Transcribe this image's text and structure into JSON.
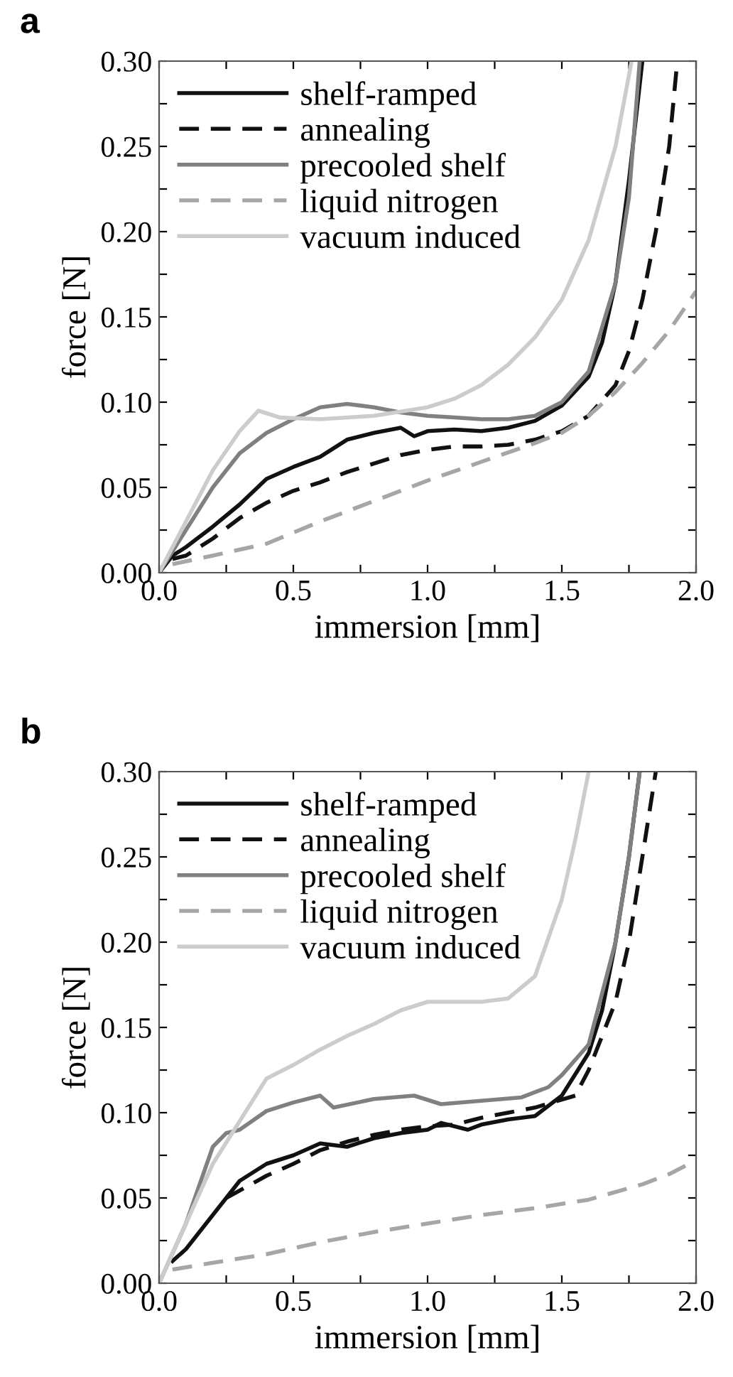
{
  "chart_data": [
    {
      "type": "line",
      "title": "a",
      "xlabel": "immersion [mm]",
      "ylabel": "force [N]",
      "xlim": [
        0,
        2
      ],
      "ylim": [
        0,
        0.3
      ],
      "xticks": [
        {
          "value": 0,
          "label": "0.0"
        },
        {
          "value": 0.25,
          "label": null
        },
        {
          "value": 0.5,
          "label": "0.5"
        },
        {
          "value": 0.75,
          "label": null
        },
        {
          "value": 1,
          "label": "1.0"
        },
        {
          "value": 1.25,
          "label": null
        },
        {
          "value": 1.5,
          "label": "1.5"
        },
        {
          "value": 1.75,
          "label": null
        },
        {
          "value": 2,
          "label": "2.0"
        }
      ],
      "yticks": [
        {
          "value": 0,
          "label": "0.00"
        },
        {
          "value": 0.025,
          "label": null
        },
        {
          "value": 0.05,
          "label": "0.05"
        },
        {
          "value": 0.075,
          "label": null
        },
        {
          "value": 0.1,
          "label": "0.10"
        },
        {
          "value": 0.125,
          "label": null
        },
        {
          "value": 0.15,
          "label": "0.15"
        },
        {
          "value": 0.175,
          "label": null
        },
        {
          "value": 0.2,
          "label": "0.20"
        },
        {
          "value": 0.225,
          "label": null
        },
        {
          "value": 0.25,
          "label": "0.25"
        },
        {
          "value": 0.275,
          "label": null
        },
        {
          "value": 0.3,
          "label": "0.30"
        }
      ],
      "grid": false,
      "legend": "top left",
      "marker": "none",
      "series": [
        {
          "name": "shelf-ramped",
          "color": "#111111",
          "line_style": "solid",
          "x": [
            0,
            0.05,
            0.1,
            0.2,
            0.3,
            0.4,
            0.5,
            0.6,
            0.7,
            0.8,
            0.9,
            0.95,
            1.0,
            1.1,
            1.2,
            1.3,
            1.4,
            1.5,
            1.6,
            1.65,
            1.7,
            1.75,
            1.8
          ],
          "values": [
            0,
            0.01,
            0.015,
            0.027,
            0.04,
            0.055,
            0.062,
            0.068,
            0.078,
            0.082,
            0.085,
            0.08,
            0.083,
            0.084,
            0.083,
            0.085,
            0.089,
            0.098,
            0.115,
            0.135,
            0.17,
            0.23,
            0.3
          ]
        },
        {
          "name": "annealing",
          "color": "#111111",
          "line_style": "dashed",
          "x": [
            0.05,
            0.1,
            0.2,
            0.3,
            0.4,
            0.5,
            0.6,
            0.7,
            0.8,
            0.9,
            1.0,
            1.1,
            1.2,
            1.3,
            1.4,
            1.5,
            1.6,
            1.7,
            1.75,
            1.8,
            1.85,
            1.9,
            1.93
          ],
          "values": [
            0.008,
            0.01,
            0.02,
            0.032,
            0.041,
            0.048,
            0.053,
            0.059,
            0.064,
            0.069,
            0.072,
            0.074,
            0.074,
            0.075,
            0.078,
            0.083,
            0.092,
            0.11,
            0.13,
            0.16,
            0.2,
            0.25,
            0.3
          ]
        },
        {
          "name": "precooled shelf",
          "color": "#808080",
          "line_style": "solid",
          "x": [
            0,
            0.1,
            0.2,
            0.3,
            0.4,
            0.5,
            0.6,
            0.7,
            0.8,
            0.9,
            1.0,
            1.1,
            1.2,
            1.3,
            1.4,
            1.5,
            1.6,
            1.7,
            1.75,
            1.79
          ],
          "values": [
            0,
            0.025,
            0.05,
            0.07,
            0.082,
            0.09,
            0.097,
            0.099,
            0.097,
            0.094,
            0.092,
            0.091,
            0.09,
            0.09,
            0.092,
            0.1,
            0.118,
            0.17,
            0.22,
            0.3
          ]
        },
        {
          "name": "liquid nitrogen",
          "color": "#a6a6a6",
          "line_style": "dashed",
          "x": [
            0.05,
            0.2,
            0.4,
            0.6,
            0.8,
            1.0,
            1.2,
            1.4,
            1.5,
            1.6,
            1.7,
            1.8,
            1.9,
            2.0
          ],
          "values": [
            0.005,
            0.01,
            0.017,
            0.03,
            0.042,
            0.054,
            0.065,
            0.076,
            0.082,
            0.092,
            0.106,
            0.123,
            0.142,
            0.165
          ]
        },
        {
          "name": "vacuum induced",
          "color": "#cccccc",
          "line_style": "solid",
          "x": [
            0,
            0.1,
            0.2,
            0.3,
            0.37,
            0.45,
            0.6,
            0.8,
            1.0,
            1.1,
            1.2,
            1.3,
            1.4,
            1.5,
            1.6,
            1.7,
            1.76
          ],
          "values": [
            0,
            0.03,
            0.06,
            0.083,
            0.095,
            0.091,
            0.09,
            0.092,
            0.097,
            0.102,
            0.11,
            0.122,
            0.138,
            0.16,
            0.195,
            0.25,
            0.3
          ]
        }
      ]
    },
    {
      "type": "line",
      "title": "b",
      "xlabel": "immersion [mm]",
      "ylabel": "force [N]",
      "xlim": [
        0,
        2
      ],
      "ylim": [
        0,
        0.3
      ],
      "xticks": [
        {
          "value": 0,
          "label": "0.0"
        },
        {
          "value": 0.25,
          "label": null
        },
        {
          "value": 0.5,
          "label": "0.5"
        },
        {
          "value": 0.75,
          "label": null
        },
        {
          "value": 1,
          "label": "1.0"
        },
        {
          "value": 1.25,
          "label": null
        },
        {
          "value": 1.5,
          "label": "1.5"
        },
        {
          "value": 1.75,
          "label": null
        },
        {
          "value": 2,
          "label": "2.0"
        }
      ],
      "yticks": [
        {
          "value": 0,
          "label": "0.00"
        },
        {
          "value": 0.025,
          "label": null
        },
        {
          "value": 0.05,
          "label": "0.05"
        },
        {
          "value": 0.075,
          "label": null
        },
        {
          "value": 0.1,
          "label": "0.10"
        },
        {
          "value": 0.125,
          "label": null
        },
        {
          "value": 0.15,
          "label": "0.15"
        },
        {
          "value": 0.175,
          "label": null
        },
        {
          "value": 0.2,
          "label": "0.20"
        },
        {
          "value": 0.225,
          "label": null
        },
        {
          "value": 0.25,
          "label": "0.25"
        },
        {
          "value": 0.275,
          "label": null
        },
        {
          "value": 0.3,
          "label": "0.30"
        }
      ],
      "grid": false,
      "legend": "top left",
      "marker": "none",
      "series": [
        {
          "name": "shelf-ramped",
          "color": "#111111",
          "line_style": "solid",
          "x": [
            0.05,
            0.1,
            0.2,
            0.3,
            0.4,
            0.5,
            0.6,
            0.7,
            0.8,
            0.9,
            1.0,
            1.05,
            1.15,
            1.2,
            1.3,
            1.4,
            1.5,
            1.6,
            1.65,
            1.7,
            1.75,
            1.79
          ],
          "values": [
            0.013,
            0.02,
            0.04,
            0.06,
            0.07,
            0.075,
            0.082,
            0.08,
            0.085,
            0.088,
            0.09,
            0.094,
            0.09,
            0.093,
            0.096,
            0.098,
            0.11,
            0.135,
            0.16,
            0.2,
            0.25,
            0.3
          ]
        },
        {
          "name": "annealing",
          "color": "#111111",
          "line_style": "dashed",
          "x": [
            0.25,
            0.4,
            0.5,
            0.6,
            0.7,
            0.8,
            0.9,
            1.0,
            1.1,
            1.2,
            1.3,
            1.4,
            1.55,
            1.6,
            1.7,
            1.75,
            1.8,
            1.85
          ],
          "values": [
            0.05,
            0.063,
            0.07,
            0.078,
            0.083,
            0.087,
            0.09,
            0.092,
            0.093,
            0.097,
            0.1,
            0.103,
            0.11,
            0.125,
            0.165,
            0.2,
            0.25,
            0.3
          ]
        },
        {
          "name": "precooled shelf",
          "color": "#808080",
          "line_style": "solid",
          "x": [
            0,
            0.1,
            0.2,
            0.25,
            0.3,
            0.4,
            0.5,
            0.6,
            0.65,
            0.8,
            0.95,
            1.05,
            1.2,
            1.35,
            1.45,
            1.5,
            1.6,
            1.7,
            1.75,
            1.79
          ],
          "values": [
            0,
            0.035,
            0.08,
            0.088,
            0.09,
            0.101,
            0.106,
            0.11,
            0.103,
            0.108,
            0.11,
            0.105,
            0.107,
            0.109,
            0.115,
            0.122,
            0.14,
            0.2,
            0.25,
            0.3
          ]
        },
        {
          "name": "liquid nitrogen",
          "color": "#a6a6a6",
          "line_style": "dashed",
          "x": [
            0.05,
            0.2,
            0.4,
            0.6,
            0.8,
            1.0,
            1.2,
            1.4,
            1.6,
            1.8,
            1.9,
            2.0
          ],
          "values": [
            0.008,
            0.012,
            0.017,
            0.024,
            0.03,
            0.035,
            0.04,
            0.044,
            0.049,
            0.058,
            0.064,
            0.072
          ]
        },
        {
          "name": "vacuum induced",
          "color": "#cccccc",
          "line_style": "solid",
          "x": [
            0,
            0.1,
            0.2,
            0.3,
            0.4,
            0.5,
            0.6,
            0.7,
            0.8,
            0.9,
            1.0,
            1.1,
            1.2,
            1.3,
            1.4,
            1.5,
            1.55,
            1.6
          ],
          "values": [
            0,
            0.035,
            0.07,
            0.095,
            0.12,
            0.128,
            0.137,
            0.145,
            0.152,
            0.16,
            0.165,
            0.165,
            0.165,
            0.167,
            0.18,
            0.225,
            0.26,
            0.3
          ]
        }
      ]
    }
  ]
}
